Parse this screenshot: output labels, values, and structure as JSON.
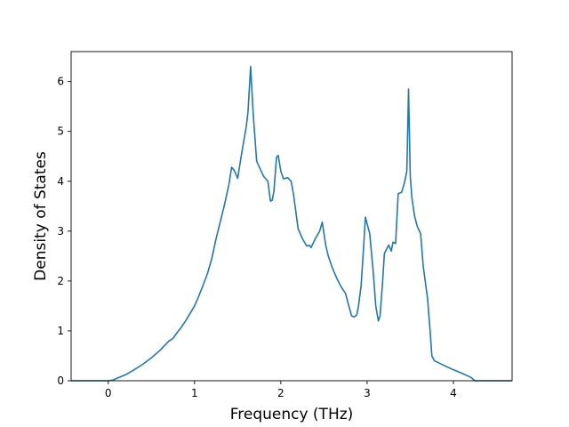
{
  "chart_data": {
    "type": "line",
    "title": "",
    "xlabel": "Frequency (THz)",
    "ylabel": "Density of States",
    "xlim": [
      -0.43,
      4.68
    ],
    "ylim": [
      0,
      6.6
    ],
    "x_ticks": [
      0,
      1,
      2,
      3,
      4
    ],
    "y_ticks": [
      0,
      1,
      2,
      3,
      4,
      5,
      6
    ],
    "grid": false,
    "line_color": "#1f77b4",
    "series": [
      {
        "x": [
          -0.43,
          -0.2,
          0.0,
          0.05,
          0.1,
          0.2,
          0.3,
          0.4,
          0.5,
          0.6,
          0.7,
          0.75,
          0.8,
          0.85,
          0.9,
          1.0,
          1.05,
          1.1,
          1.15,
          1.2,
          1.25,
          1.3,
          1.35,
          1.4,
          1.43,
          1.46,
          1.5,
          1.55,
          1.6,
          1.62,
          1.65,
          1.68,
          1.72,
          1.8,
          1.85,
          1.88,
          1.9,
          1.92,
          1.95,
          1.97,
          2.0,
          2.03,
          2.08,
          2.12,
          2.15,
          2.2,
          2.25,
          2.3,
          2.33,
          2.35,
          2.4,
          2.45,
          2.48,
          2.52,
          2.55,
          2.6,
          2.65,
          2.7,
          2.75,
          2.78,
          2.82,
          2.85,
          2.88,
          2.9,
          2.93,
          2.96,
          2.98,
          3.03,
          3.07,
          3.1,
          3.13,
          3.15,
          3.18,
          3.2,
          3.25,
          3.28,
          3.3,
          3.33,
          3.36,
          3.4,
          3.43,
          3.46,
          3.47,
          3.48,
          3.5,
          3.52,
          3.55,
          3.58,
          3.62,
          3.65,
          3.7,
          3.73,
          3.75,
          3.78,
          3.9,
          4.0,
          4.1,
          4.2,
          4.25,
          4.3,
          4.68
        ],
        "y": [
          0,
          0,
          0,
          0.01,
          0.05,
          0.12,
          0.22,
          0.33,
          0.46,
          0.61,
          0.79,
          0.85,
          0.97,
          1.08,
          1.21,
          1.5,
          1.7,
          1.92,
          2.15,
          2.45,
          2.85,
          3.2,
          3.55,
          3.95,
          4.28,
          4.22,
          4.06,
          4.6,
          5.1,
          5.4,
          6.3,
          5.35,
          4.4,
          4.1,
          4.0,
          3.6,
          3.62,
          3.8,
          4.48,
          4.52,
          4.2,
          4.05,
          4.07,
          4.0,
          3.7,
          3.05,
          2.85,
          2.7,
          2.72,
          2.67,
          2.85,
          3.0,
          3.18,
          2.72,
          2.5,
          2.25,
          2.05,
          1.88,
          1.75,
          1.55,
          1.3,
          1.28,
          1.32,
          1.5,
          1.9,
          2.7,
          3.28,
          2.95,
          2.2,
          1.5,
          1.2,
          1.3,
          2.0,
          2.55,
          2.72,
          2.6,
          2.78,
          2.75,
          3.75,
          3.78,
          3.95,
          4.2,
          5.0,
          5.85,
          4.1,
          3.65,
          3.3,
          3.1,
          2.95,
          2.3,
          1.65,
          1.0,
          0.5,
          0.4,
          0.3,
          0.22,
          0.15,
          0.07,
          0.0,
          0.0,
          0.0
        ]
      }
    ]
  }
}
